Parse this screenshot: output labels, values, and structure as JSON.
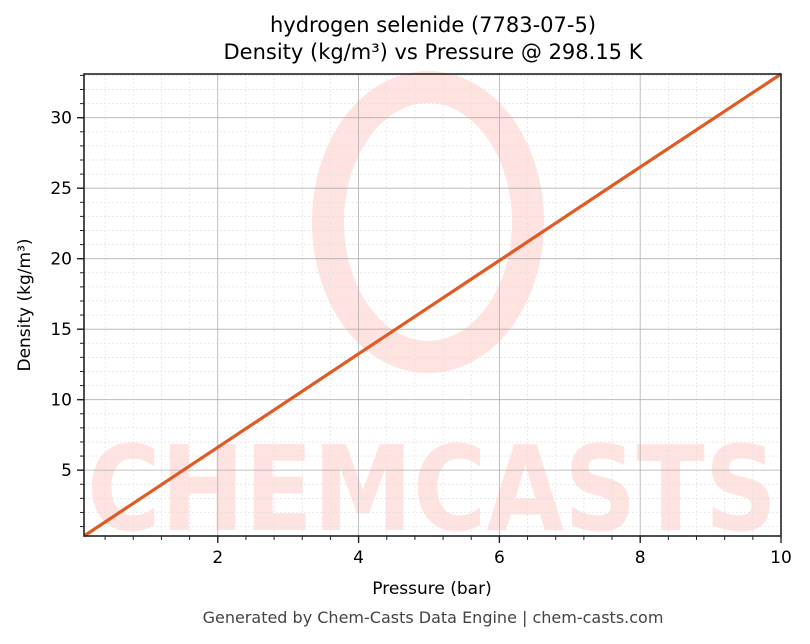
{
  "title_line1": "hydrogen selenide (7783-07-5)",
  "title_line2": "Density (kg/m³) vs Pressure @ 298.15 K",
  "footer": "Generated by Chem-Casts Data Engine | chem-casts.com",
  "watermark": "CHEMCASTS",
  "colors": {
    "line": "#e05a24",
    "watermark": "#ffe3e0",
    "grid_major": "#b0b0b0",
    "grid_minor": "#e0e0e0"
  },
  "chart_data": {
    "type": "line",
    "title": "hydrogen selenide (7783-07-5)\nDensity (kg/m³) vs Pressure @ 298.15 K",
    "xlabel": "Pressure (bar)",
    "ylabel": "Density (kg/m³)",
    "xlim": [
      0.1,
      10
    ],
    "ylim": [
      0.33,
      33.1
    ],
    "xticks": [
      2,
      4,
      6,
      8,
      10
    ],
    "yticks": [
      5,
      10,
      15,
      20,
      25,
      30
    ],
    "grid": true,
    "series": [
      {
        "name": "Density",
        "x": [
          0.1,
          2,
          4,
          6,
          8,
          10
        ],
        "y": [
          0.33,
          6.62,
          13.25,
          19.87,
          26.5,
          33.1
        ]
      }
    ]
  }
}
